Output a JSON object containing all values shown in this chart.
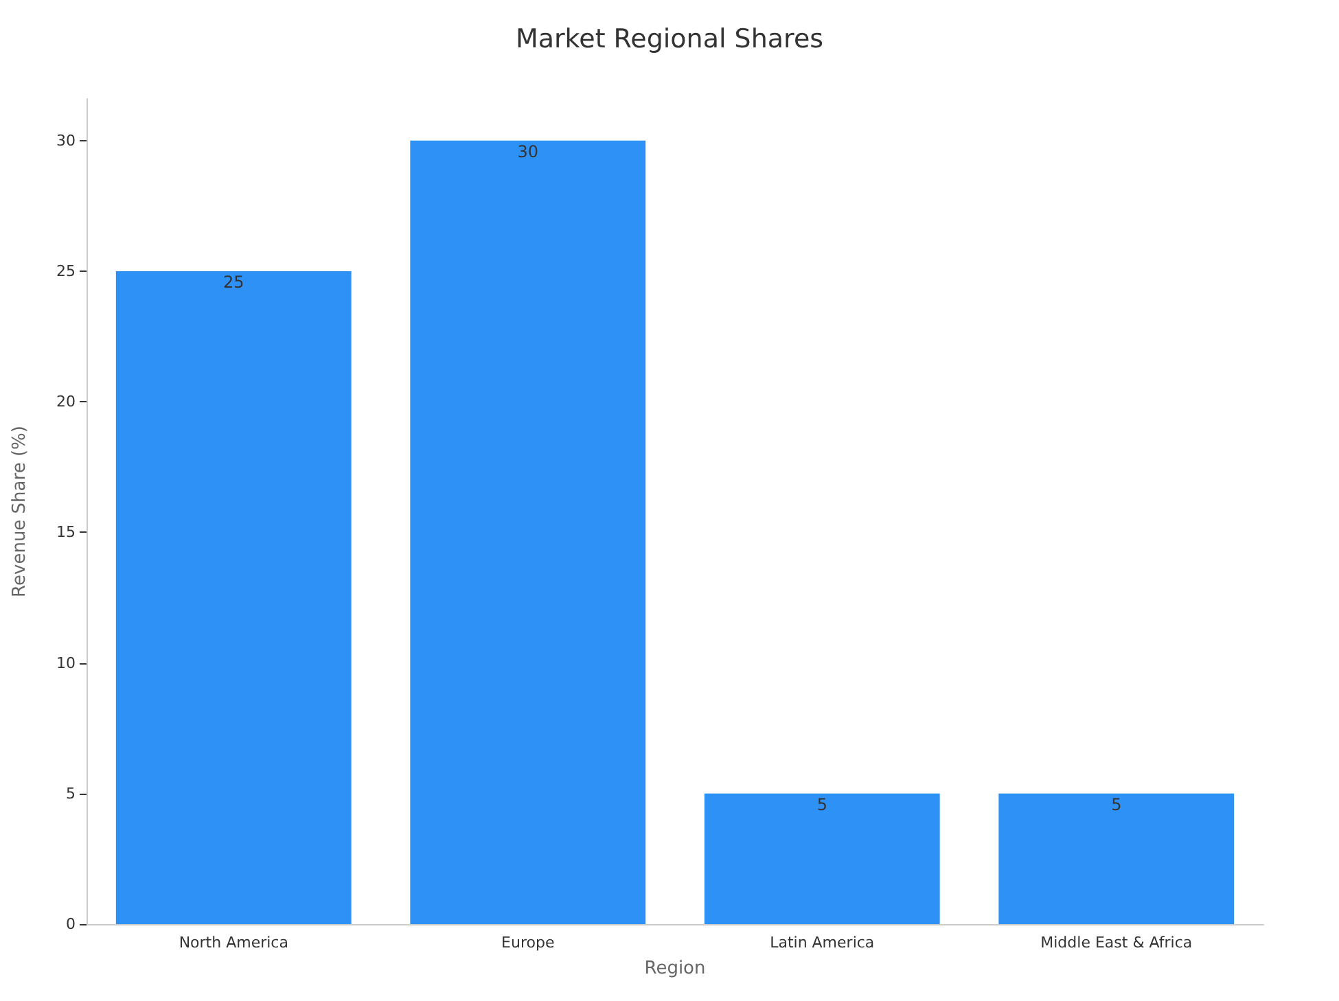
{
  "chart_data": {
    "type": "bar",
    "title": "Market Regional Shares",
    "xlabel": "Region",
    "ylabel": "Revenue Share (%)",
    "categories": [
      "North America",
      "Europe",
      "Latin America",
      "Middle East & Africa"
    ],
    "values": [
      25,
      30,
      5,
      5
    ],
    "color": "#2e91f5",
    "ylim": [
      0,
      31.6
    ],
    "yticks": [
      0,
      5,
      10,
      15,
      20,
      25,
      30
    ],
    "grid": false,
    "data_labels": true
  }
}
